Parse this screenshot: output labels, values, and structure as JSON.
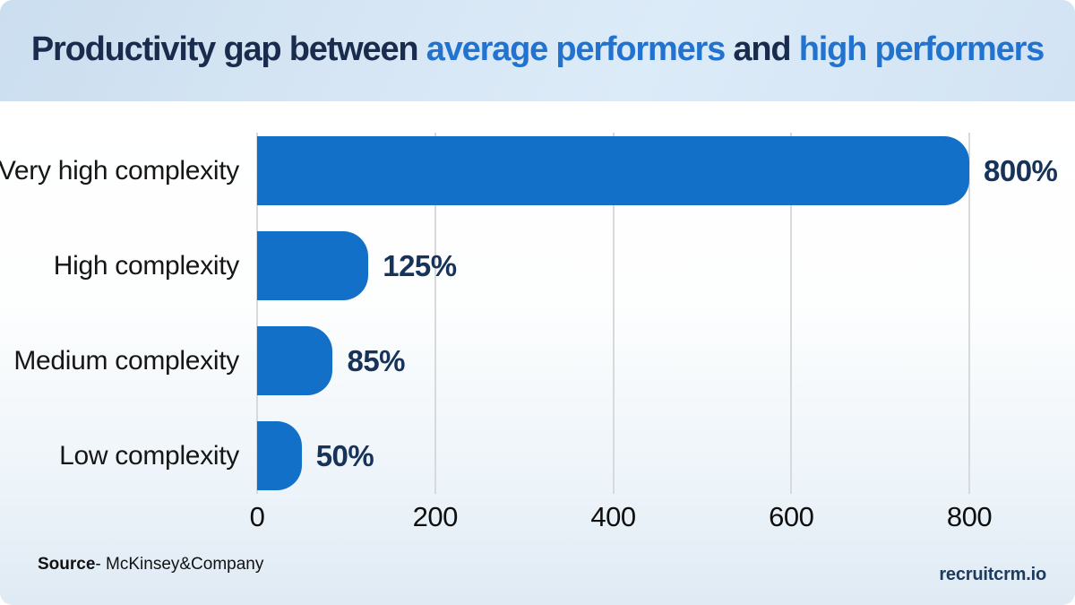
{
  "title": {
    "part1": "Productivity gap between",
    "part2": " average performers",
    "part3": " and",
    "part4": " high performers"
  },
  "chart_data": {
    "type": "bar",
    "orientation": "horizontal",
    "title": "Productivity gap between average performers and high performers",
    "categories": [
      "Very high complexity",
      "High complexity",
      "Medium complexity",
      "Low complexity"
    ],
    "values": [
      800,
      125,
      85,
      50
    ],
    "value_labels": [
      "800%",
      "125%",
      "85%",
      "50%"
    ],
    "xlim": [
      0,
      800
    ],
    "ticks": [
      0,
      200,
      400,
      600,
      800
    ],
    "tick_labels": [
      "0",
      "200",
      "400",
      "600",
      "800"
    ],
    "grid": "vertical-gridlines-on",
    "legend": "none",
    "bar_color": "#1370c9",
    "xlabel": "",
    "ylabel": ""
  },
  "colors": {
    "title_navy": "#1a2c4e",
    "title_blue": "#2173cf",
    "bar_blue": "#1370c9",
    "value_navy": "#17335a",
    "gridline": "#d7d9db",
    "header_bg": "#d3e3f2",
    "brand_navy": "#1e3a5f"
  },
  "footer": {
    "source_label": "Source",
    "source_text": "- McKinsey&Company",
    "brand": "recruitcrm.io"
  }
}
